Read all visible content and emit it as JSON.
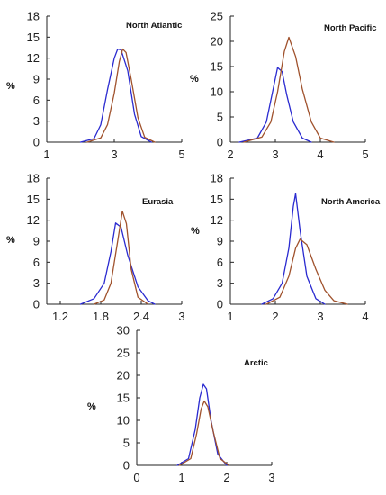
{
  "colors": {
    "blue_series": "#2a2ad0",
    "brown_series": "#a0522d",
    "axis": "#222222"
  },
  "chart_data": [
    {
      "type": "line",
      "title": "North Atlantic",
      "ylabel": "%",
      "xlim": [
        1,
        5
      ],
      "ylim": [
        0,
        18
      ],
      "xticks": [
        "1",
        "3",
        "5"
      ],
      "xtick_values": [
        1,
        3,
        5
      ],
      "yticks": [
        "0",
        "3",
        "6",
        "9",
        "12",
        "15",
        "18"
      ],
      "ytick_values": [
        0,
        3,
        6,
        9,
        12,
        15,
        18
      ],
      "series": [
        {
          "color": "#2a2ad0",
          "x": [
            2.0,
            2.4,
            2.6,
            2.8,
            3.0,
            3.1,
            3.2,
            3.4,
            3.6,
            3.8,
            4.1
          ],
          "y": [
            0,
            0.5,
            2.5,
            7.5,
            12.0,
            13.3,
            13.2,
            10.2,
            4.0,
            0.8,
            0
          ]
        },
        {
          "color": "#a0522d",
          "x": [
            2.2,
            2.6,
            2.8,
            3.0,
            3.15,
            3.25,
            3.35,
            3.5,
            3.7,
            3.9,
            4.2
          ],
          "y": [
            0,
            0.6,
            2.5,
            7.0,
            11.5,
            13.3,
            12.8,
            9.0,
            3.5,
            0.7,
            0
          ]
        }
      ]
    },
    {
      "type": "line",
      "title": "North Pacific",
      "ylabel": "%",
      "xlim": [
        2,
        5
      ],
      "ylim": [
        0,
        25
      ],
      "xticks": [
        "2",
        "3",
        "4",
        "5"
      ],
      "xtick_values": [
        2,
        3,
        4,
        5
      ],
      "yticks": [
        "0",
        "5",
        "10",
        "15",
        "20",
        "25"
      ],
      "ytick_values": [
        0,
        5,
        10,
        15,
        20,
        25
      ],
      "series": [
        {
          "color": "#2a2ad0",
          "x": [
            2.2,
            2.6,
            2.8,
            2.95,
            3.05,
            3.15,
            3.25,
            3.4,
            3.6,
            3.8
          ],
          "y": [
            0,
            0.8,
            4.0,
            10.5,
            14.8,
            14.0,
            9.5,
            4.0,
            0.8,
            0
          ]
        },
        {
          "color": "#a0522d",
          "x": [
            2.3,
            2.7,
            2.9,
            3.05,
            3.2,
            3.3,
            3.45,
            3.6,
            3.8,
            4.0,
            4.3
          ],
          "y": [
            0,
            1.0,
            4.0,
            10.0,
            18.0,
            20.8,
            17.0,
            10.5,
            4.0,
            0.8,
            0
          ]
        }
      ]
    },
    {
      "type": "line",
      "title": "Eurasia",
      "ylabel": "%",
      "xlim": [
        1.0,
        3.0
      ],
      "ylim": [
        0,
        18
      ],
      "xticks": [
        "1.2",
        "1.8",
        "2.4",
        "3"
      ],
      "xtick_values": [
        1.2,
        1.8,
        2.4,
        3.0
      ],
      "yticks": [
        "0",
        "3",
        "6",
        "9",
        "12",
        "15",
        "18"
      ],
      "ytick_values": [
        0,
        3,
        6,
        9,
        12,
        15,
        18
      ],
      "series": [
        {
          "color": "#2a2ad0",
          "x": [
            1.5,
            1.7,
            1.85,
            1.95,
            2.02,
            2.1,
            2.2,
            2.35,
            2.5,
            2.6
          ],
          "y": [
            0,
            0.8,
            3.0,
            7.5,
            11.6,
            11.0,
            7.0,
            2.5,
            0.5,
            0
          ]
        },
        {
          "color": "#a0522d",
          "x": [
            1.7,
            1.85,
            1.95,
            2.05,
            2.12,
            2.18,
            2.25,
            2.35,
            2.5
          ],
          "y": [
            0,
            0.6,
            3.0,
            9.0,
            13.3,
            11.5,
            5.0,
            1.0,
            0
          ]
        }
      ]
    },
    {
      "type": "line",
      "title": "North America",
      "ylabel": "%",
      "xlim": [
        1,
        4
      ],
      "ylim": [
        0,
        18
      ],
      "xticks": [
        "1",
        "2",
        "3",
        "4"
      ],
      "xtick_values": [
        1,
        2,
        3,
        4
      ],
      "yticks": [
        "0",
        "3",
        "6",
        "9",
        "12",
        "15",
        "18"
      ],
      "ytick_values": [
        0,
        3,
        6,
        9,
        12,
        15,
        18
      ],
      "series": [
        {
          "color": "#2a2ad0",
          "x": [
            1.7,
            1.95,
            2.15,
            2.3,
            2.4,
            2.45,
            2.55,
            2.7,
            2.9,
            3.1
          ],
          "y": [
            0,
            0.8,
            3.0,
            8.0,
            14.0,
            15.8,
            10.5,
            4.0,
            0.8,
            0
          ]
        },
        {
          "color": "#a0522d",
          "x": [
            1.8,
            2.1,
            2.3,
            2.45,
            2.55,
            2.7,
            2.9,
            3.1,
            3.3,
            3.6
          ],
          "y": [
            0,
            1.0,
            4.0,
            8.0,
            9.3,
            8.5,
            5.0,
            2.0,
            0.5,
            0
          ]
        }
      ]
    },
    {
      "type": "line",
      "title": "Arctic",
      "ylabel": "%",
      "xlim": [
        0,
        3
      ],
      "ylim": [
        0,
        30
      ],
      "xticks": [
        "0",
        "1",
        "2",
        "3"
      ],
      "xtick_values": [
        0,
        1,
        2,
        3
      ],
      "yticks": [
        "0",
        "5",
        "10",
        "15",
        "20",
        "25",
        "30"
      ],
      "ytick_values": [
        0,
        5,
        10,
        15,
        20,
        25,
        30
      ],
      "series": [
        {
          "color": "#2a2ad0",
          "x": [
            0.9,
            1.15,
            1.3,
            1.4,
            1.48,
            1.55,
            1.65,
            1.8,
            2.0
          ],
          "y": [
            0,
            1.5,
            8.0,
            15.0,
            18.0,
            17.0,
            10.0,
            2.5,
            0
          ]
        },
        {
          "color": "#a0522d",
          "x": [
            0.95,
            1.2,
            1.33,
            1.43,
            1.5,
            1.58,
            1.7,
            1.85,
            2.05
          ],
          "y": [
            0,
            1.5,
            7.0,
            12.5,
            14.3,
            13.0,
            7.5,
            1.5,
            0
          ]
        }
      ]
    }
  ]
}
